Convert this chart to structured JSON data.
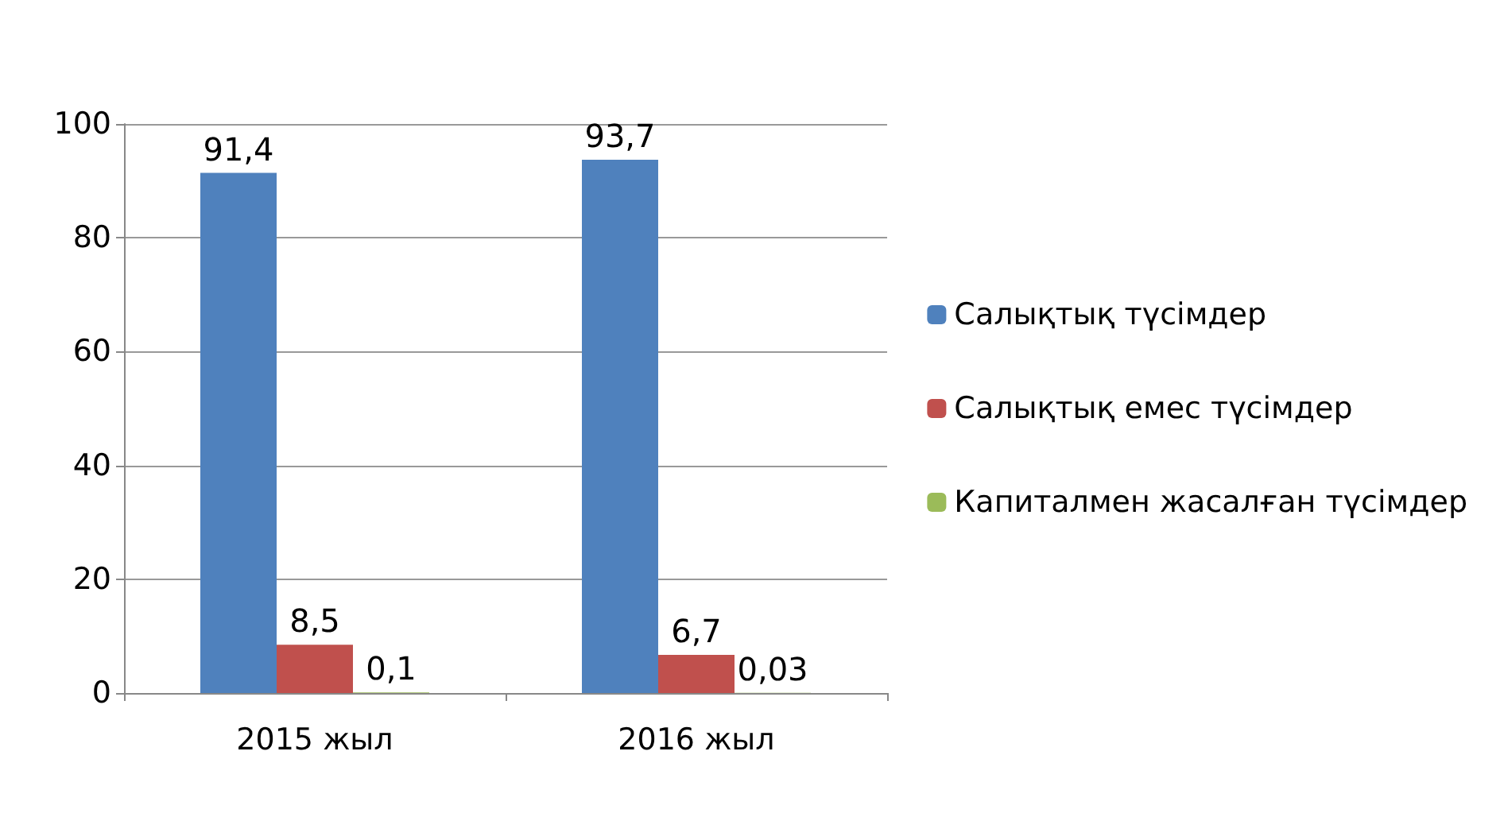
{
  "chart_data": {
    "type": "bar",
    "categories": [
      "2015 жыл",
      "2016 жыл"
    ],
    "series": [
      {
        "name": "Салықтық түсімдер",
        "color": "#4f81bd",
        "values": [
          91.4,
          93.7
        ],
        "value_labels": [
          "91,4",
          "93,7"
        ]
      },
      {
        "name": "Салықтық емес түсімдер",
        "color": "#c0504d",
        "values": [
          8.5,
          6.7
        ],
        "value_labels": [
          "8,5",
          "6,7"
        ]
      },
      {
        "name": "Капиталмен жасалған түсімдер",
        "color": "#9bbb59",
        "values": [
          0.1,
          0.03
        ],
        "value_labels": [
          "0,1",
          "0,03"
        ]
      }
    ],
    "ylim": [
      0,
      100
    ],
    "yticks": [
      0,
      20,
      40,
      60,
      80,
      100
    ],
    "grid": "y",
    "legend": "right"
  }
}
